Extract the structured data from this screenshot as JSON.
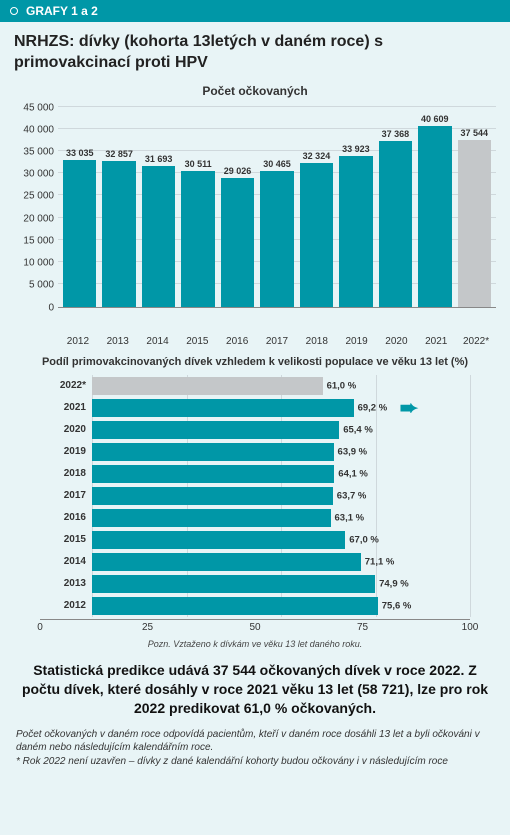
{
  "header": {
    "label": "GRAFY 1 a 2"
  },
  "title": "NRHZS: dívky (kohorta 13letých v daném roce) s primovakcinací proti HPV",
  "colors": {
    "accent": "#0097a7",
    "bar": "#0097a7",
    "bar_muted": "#c4c7c9",
    "bg": "#e8f4f6",
    "grid": "#cfd8dc"
  },
  "bar_chart": {
    "type": "bar",
    "title": "Počet očkovaných",
    "ylim": [
      0,
      45000
    ],
    "ytick_step": 5000,
    "yticks": [
      "0",
      "5 000",
      "10 000",
      "15 000",
      "20 000",
      "25 000",
      "30 000",
      "35 000",
      "40 000",
      "45 000"
    ],
    "categories": [
      "2012",
      "2013",
      "2014",
      "2015",
      "2016",
      "2017",
      "2018",
      "2019",
      "2020",
      "2021",
      "2022*"
    ],
    "values": [
      33035,
      32857,
      31693,
      30511,
      29026,
      30465,
      32324,
      33923,
      37368,
      40609,
      37544
    ],
    "value_labels": [
      "33 035",
      "32 857",
      "31 693",
      "30 511",
      "29 026",
      "30 465",
      "32 324",
      "33 923",
      "37 368",
      "40 609",
      "37 544"
    ],
    "highlight_muted_index": 10
  },
  "hbar_chart": {
    "type": "bar-horizontal",
    "title": "Podíl primovakcinovaných dívek vzhledem k velikosti populace ve věku 13 let (%)",
    "xlim": [
      0,
      100
    ],
    "xticks": [
      0,
      25,
      50,
      75,
      100
    ],
    "categories": [
      "2022*",
      "2021",
      "2020",
      "2019",
      "2018",
      "2017",
      "2016",
      "2015",
      "2014",
      "2013",
      "2012"
    ],
    "values": [
      61.0,
      69.2,
      65.4,
      63.9,
      64.1,
      63.7,
      63.1,
      67.0,
      71.1,
      74.9,
      75.6
    ],
    "value_labels": [
      "61,0 %",
      "69,2 %",
      "65,4 %",
      "63,9 %",
      "64,1 %",
      "63,7 %",
      "63,1 %",
      "67,0 %",
      "71,1 %",
      "74,9 %",
      "75,6 %"
    ],
    "muted_index": 0,
    "arrow_index": 1,
    "note": "Pozn. Vztaženo k dívkám ve věku 13 let daného roku."
  },
  "prediction": "Statistická predikce udává 37 544 očkovaných dívek v roce 2022. Z počtu dívek, které dosáhly v roce 2021 věku 13 let (58 721), lze pro rok 2022 predikovat 61,0 % očkovaných.",
  "footnotes": {
    "line1": "Počet očkovaných v daném roce odpovídá pacientům, kteří v daném roce dosáhli 13 let a byli očkováni v daném nebo následujícím kalendářním roce.",
    "line2": "* Rok 2022 není uzavřen – dívky z dané kalendářní kohorty budou očkovány i v následujícím roce"
  }
}
